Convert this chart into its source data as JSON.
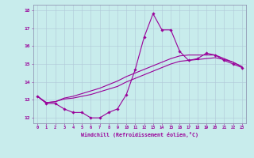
{
  "xlabel": "Windchill (Refroidissement éolien,°C)",
  "background_color": "#c8ecec",
  "grid_color": "#b0c8d8",
  "line_color": "#990099",
  "spine_color": "#8888aa",
  "xlim": [
    -0.5,
    23.5
  ],
  "ylim": [
    11.7,
    18.3
  ],
  "yticks": [
    12,
    13,
    14,
    15,
    16,
    17,
    18
  ],
  "xticks": [
    0,
    1,
    2,
    3,
    4,
    5,
    6,
    7,
    8,
    9,
    10,
    11,
    12,
    13,
    14,
    15,
    16,
    17,
    18,
    19,
    20,
    21,
    22,
    23
  ],
  "hours": [
    0,
    1,
    2,
    3,
    4,
    5,
    6,
    7,
    8,
    9,
    10,
    11,
    12,
    13,
    14,
    15,
    16,
    17,
    18,
    19,
    20,
    21,
    22,
    23
  ],
  "temp_line": [
    13.2,
    12.8,
    12.8,
    12.5,
    12.3,
    12.3,
    12.0,
    12.0,
    12.3,
    12.5,
    13.3,
    14.7,
    16.5,
    17.8,
    16.9,
    16.9,
    15.7,
    15.2,
    15.3,
    15.6,
    15.5,
    15.2,
    15.0,
    14.8
  ],
  "line2": [
    13.2,
    12.85,
    12.9,
    13.05,
    13.1,
    13.2,
    13.3,
    13.45,
    13.6,
    13.75,
    14.0,
    14.2,
    14.4,
    14.6,
    14.8,
    15.0,
    15.15,
    15.2,
    15.25,
    15.3,
    15.35,
    15.25,
    15.1,
    14.85
  ],
  "line3": [
    13.2,
    12.85,
    12.9,
    13.1,
    13.2,
    13.35,
    13.5,
    13.65,
    13.85,
    14.05,
    14.3,
    14.5,
    14.7,
    14.9,
    15.1,
    15.3,
    15.45,
    15.5,
    15.5,
    15.5,
    15.5,
    15.3,
    15.1,
    14.85
  ]
}
